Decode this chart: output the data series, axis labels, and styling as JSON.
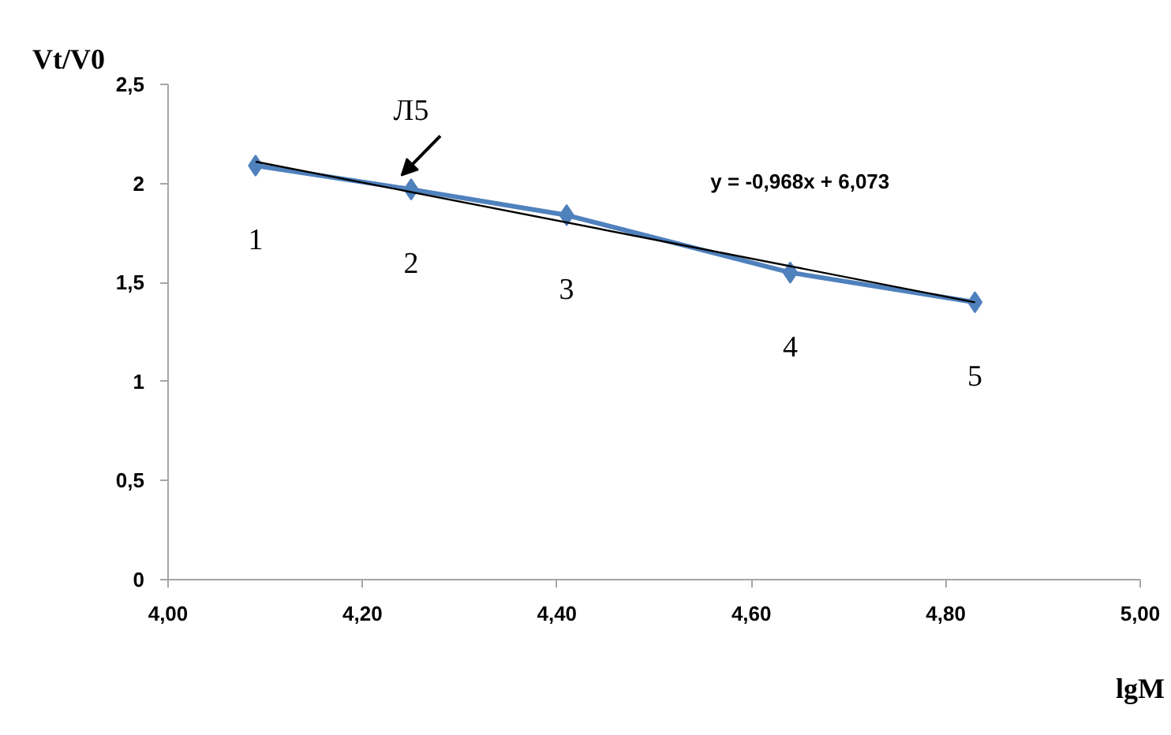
{
  "chart_data": {
    "type": "line",
    "ylabel": "Vt/V0",
    "xlabel": "lgM",
    "xlim": [
      4.0,
      5.0
    ],
    "xticks": [
      {
        "value": 4.0,
        "label": "4,00"
      },
      {
        "value": 4.2,
        "label": "4,20"
      },
      {
        "value": 4.4,
        "label": "4,40"
      },
      {
        "value": 4.6,
        "label": "4,60"
      },
      {
        "value": 4.8,
        "label": "4,80"
      },
      {
        "value": 5.0,
        "label": "5,00"
      }
    ],
    "ylim": [
      0,
      2.5
    ],
    "yticks": [
      0,
      {
        "value": 0.5,
        "label": "0,5"
      },
      1,
      {
        "value": 1.5,
        "label": "1,5"
      },
      2,
      {
        "value": 2.5,
        "label": "2,5"
      }
    ],
    "grid": false,
    "marker": "diamond",
    "line_style": "solid",
    "x": [
      4.09,
      4.25,
      4.41,
      4.64,
      4.83
    ],
    "series": [
      {
        "color": "#4f81bd",
        "values": [
          2.09,
          1.97,
          1.84,
          1.55,
          1.4
        ]
      },
      {
        "type": "line",
        "color": "#000000",
        "x": [
          4.09,
          4.83
        ],
        "values": [
          2.11,
          1.4
        ],
        "marker": "none"
      }
    ],
    "annotations": [
      {
        "text": "1",
        "x": 4.09,
        "y": 2.09
      },
      {
        "text": "2",
        "x": 4.25,
        "y": 1.97
      },
      {
        "text": "3",
        "x": 4.41,
        "y": 1.84
      },
      {
        "text": "4",
        "x": 4.64,
        "y": 1.55
      },
      {
        "text": "5",
        "x": 4.83,
        "y": 1.4
      },
      {
        "text": "Л5",
        "x": 4.25,
        "y": 1.97
      },
      "y = -0,968x + 6,073"
    ]
  }
}
